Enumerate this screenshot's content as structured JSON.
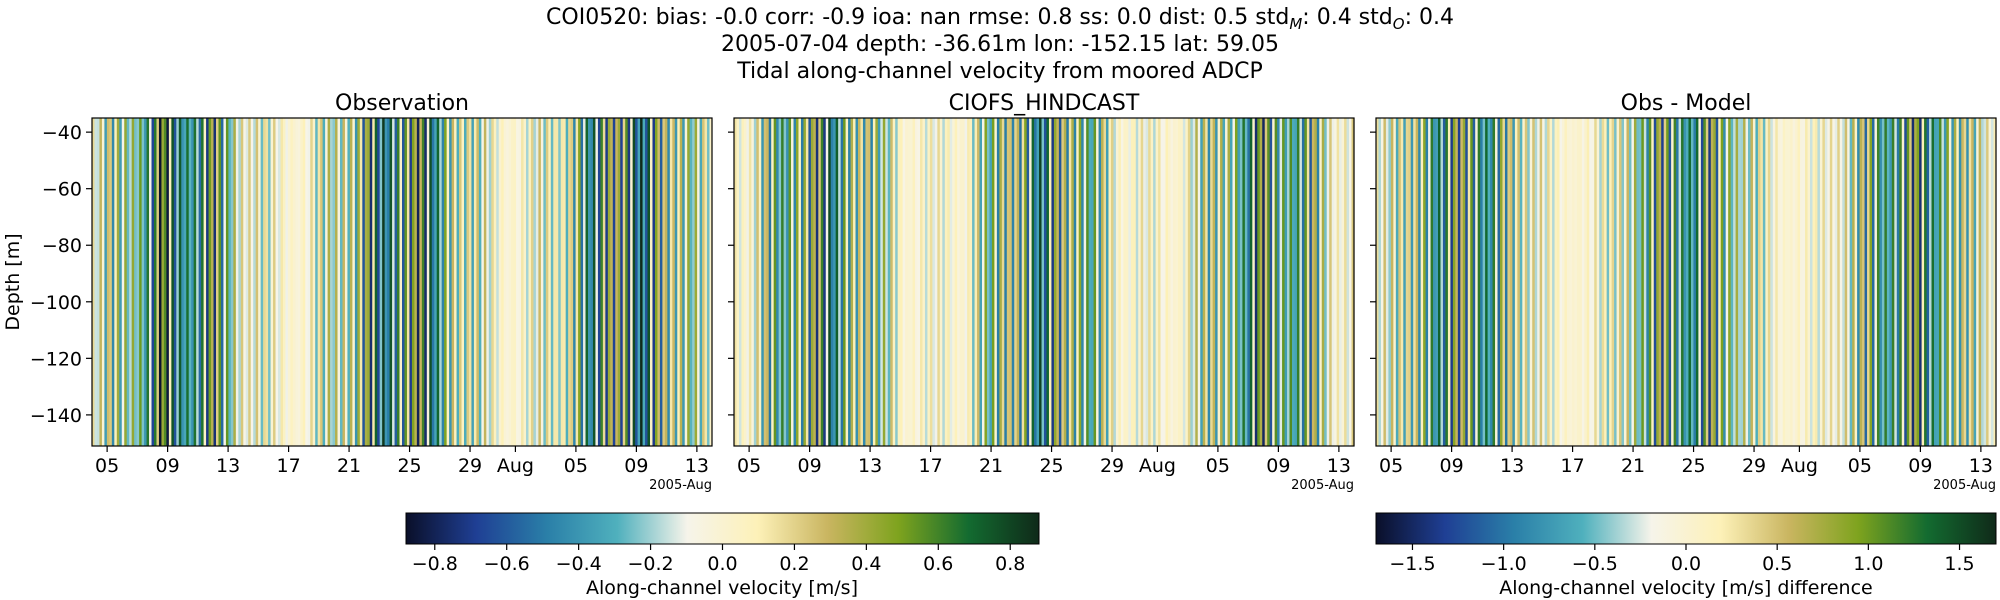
{
  "header": {
    "line1": {
      "main": "COI0520: bias: -0.0  corr: -0.9  ioa: nan  rmse: 0.8  ss: 0.0  dist: 0.5  std",
      "sub_m": "M",
      "mid": ": 0.4  std",
      "sub_o": "O",
      "end": ": 0.4"
    },
    "line2": "2005-07-04 depth: -36.61m lon: -152.15 lat: 59.05",
    "line3": "Tidal along-channel velocity from moored ADCP"
  },
  "colors": {
    "cmap": [
      "#0a0f29",
      "#1f3f94",
      "#2a7fa8",
      "#4fb0bd",
      "#f6f4ea",
      "#fdf1b8",
      "#c9b560",
      "#7ea31e",
      "#136b30",
      "#0f2a19"
    ]
  },
  "chart_data": [
    {
      "type": "heatmap",
      "title": "Observation",
      "ylabel": "Depth [m]",
      "ylim": [
        -151,
        -35
      ],
      "yticks": [
        -40,
        -60,
        -80,
        -100,
        -120,
        -140
      ],
      "x_range": [
        "2005-07-04",
        "2005-08-14"
      ],
      "xticks": [
        {
          "date": "2005-07-05",
          "label": "05"
        },
        {
          "date": "2005-07-09",
          "label": "09"
        },
        {
          "date": "2005-07-13",
          "label": "13"
        },
        {
          "date": "2005-07-17",
          "label": "17"
        },
        {
          "date": "2005-07-21",
          "label": "21"
        },
        {
          "date": "2005-07-25",
          "label": "25"
        },
        {
          "date": "2005-07-29",
          "label": "29"
        },
        {
          "date": "2005-08-01",
          "label": "Aug"
        },
        {
          "date": "2005-08-05",
          "label": "05"
        },
        {
          "date": "2005-08-09",
          "label": "09"
        },
        {
          "date": "2005-08-13",
          "label": "13"
        }
      ],
      "x_offset_label": "2005-Aug",
      "value_range": [
        -0.88,
        0.88
      ],
      "tidal_amplitude": 0.8,
      "colorbar": {
        "ticks": [
          -0.8,
          -0.6,
          -0.4,
          -0.2,
          0.0,
          0.2,
          0.4,
          0.6,
          0.8
        ],
        "tick_labels": [
          "−0.8",
          "−0.6",
          "−0.4",
          "−0.2",
          "0.0",
          "0.2",
          "0.4",
          "0.6",
          "0.8"
        ],
        "label": "Along-channel velocity [m/s]"
      }
    },
    {
      "type": "heatmap",
      "title": "CIOFS_HINDCAST",
      "ylim": [
        -151,
        -35
      ],
      "x_range": [
        "2005-07-04",
        "2005-08-14"
      ],
      "xticks": [
        {
          "date": "2005-07-05",
          "label": "05"
        },
        {
          "date": "2005-07-09",
          "label": "09"
        },
        {
          "date": "2005-07-13",
          "label": "13"
        },
        {
          "date": "2005-07-17",
          "label": "17"
        },
        {
          "date": "2005-07-21",
          "label": "21"
        },
        {
          "date": "2005-07-25",
          "label": "25"
        },
        {
          "date": "2005-07-29",
          "label": "29"
        },
        {
          "date": "2005-08-01",
          "label": "Aug"
        },
        {
          "date": "2005-08-05",
          "label": "05"
        },
        {
          "date": "2005-08-09",
          "label": "09"
        },
        {
          "date": "2005-08-13",
          "label": "13"
        }
      ],
      "x_offset_label": "2005-Aug",
      "value_range": [
        -0.88,
        0.88
      ],
      "tidal_amplitude": 0.7
    },
    {
      "type": "heatmap",
      "title": "Obs - Model",
      "ylim": [
        -151,
        -35
      ],
      "x_range": [
        "2005-07-04",
        "2005-08-14"
      ],
      "xticks": [
        {
          "date": "2005-07-05",
          "label": "05"
        },
        {
          "date": "2005-07-09",
          "label": "09"
        },
        {
          "date": "2005-07-13",
          "label": "13"
        },
        {
          "date": "2005-07-17",
          "label": "17"
        },
        {
          "date": "2005-07-21",
          "label": "21"
        },
        {
          "date": "2005-07-25",
          "label": "25"
        },
        {
          "date": "2005-07-29",
          "label": "29"
        },
        {
          "date": "2005-08-01",
          "label": "Aug"
        },
        {
          "date": "2005-08-05",
          "label": "05"
        },
        {
          "date": "2005-08-09",
          "label": "09"
        },
        {
          "date": "2005-08-13",
          "label": "13"
        }
      ],
      "x_offset_label": "2005-Aug",
      "value_range": [
        -1.7,
        1.7
      ],
      "tidal_amplitude": 1.4,
      "colorbar": {
        "ticks": [
          -1.5,
          -1.0,
          -0.5,
          0.0,
          0.5,
          1.0,
          1.5
        ],
        "tick_labels": [
          "−1.5",
          "−1.0",
          "−0.5",
          "0.0",
          "0.5",
          "1.0",
          "1.5"
        ],
        "label": "Along-channel velocity [m/s] difference"
      }
    }
  ]
}
